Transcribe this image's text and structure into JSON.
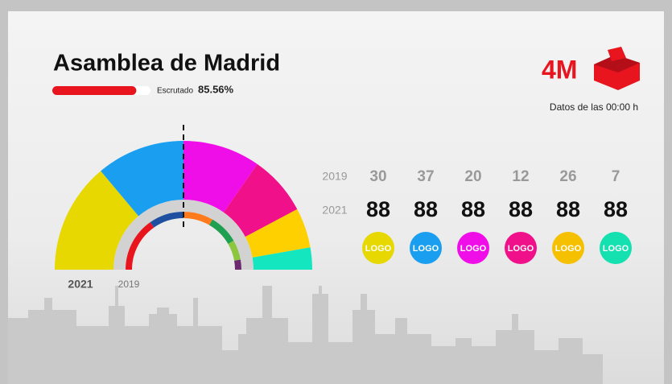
{
  "header": {
    "title": "Asamblea de Madrid",
    "progress": {
      "label": "Escrutado",
      "value": 85.56,
      "value_label": "85.56%"
    }
  },
  "logo": "4M",
  "timestamp": "Datos de las 00:00 h",
  "hemicycle": {
    "outer": {
      "label": "2021",
      "colors": [
        "#e6d800",
        "#1a9ff0",
        "#f00ee8",
        "#f0108a",
        "#ffd000",
        "#14e6c0"
      ],
      "values": [
        50,
        40,
        35,
        27,
        18,
        10
      ]
    },
    "inner": {
      "label": "2019",
      "colors": [
        "#e8141e",
        "#1e4fa0",
        "#ff7a1a",
        "#1fa050",
        "#8cc63e",
        "#6b2a70"
      ],
      "values": [
        55,
        35,
        30,
        30,
        20,
        10
      ]
    }
  },
  "table": {
    "row_labels": [
      "2019",
      "2021"
    ],
    "rows": [
      [
        30,
        37,
        20,
        12,
        26,
        7
      ],
      [
        88,
        88,
        88,
        88,
        88,
        88
      ]
    ],
    "logos": {
      "text": "LOGO",
      "colors": [
        "#e6d800",
        "#1a9ff0",
        "#f00ee8",
        "#f0108a",
        "#f5c000",
        "#14e0b0"
      ]
    }
  }
}
